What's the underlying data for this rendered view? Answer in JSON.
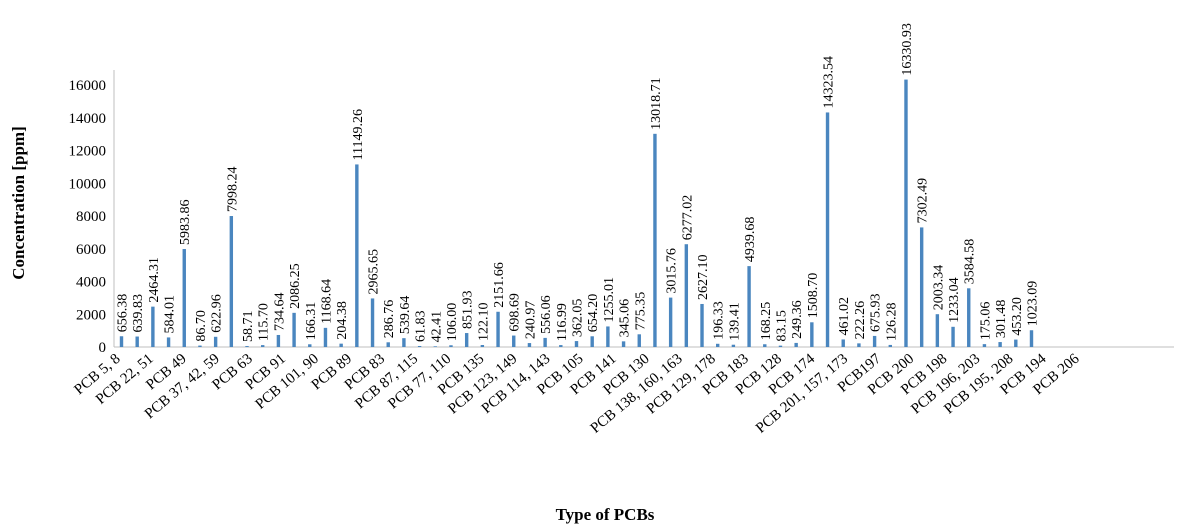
{
  "chart_data": {
    "type": "bar",
    "title": "",
    "xlabel": "Type of PCBs",
    "ylabel": "Concentration [ppm]",
    "ylim": [
      0,
      16000
    ],
    "yticks": [
      "0",
      "2000",
      "4000",
      "6000",
      "8000",
      "10000",
      "12000",
      "14000",
      "16000"
    ],
    "grid": false,
    "legend": "none",
    "bar_color": "#4a86bf",
    "category_labels": [
      "PCB 5, 8",
      "PCB 22, 51",
      "PCB 49",
      "PCB 37, 42, 59",
      "PCB 63",
      "PCB 91",
      "PCB 101, 90",
      "PCB 89",
      "PCB 83",
      "PCB 87, 115",
      "PCB 77, 110",
      "PCB 135",
      "PCB 123, 149",
      "PCB 114, 143",
      "PCB 105",
      "PCB 141",
      "PCB 130",
      "PCB 138, 160, 163",
      "PCB 129, 178",
      "PCB 183",
      "PCB 128",
      "PCB 174",
      "PCB 201, 157, 173",
      "PCB197",
      "PCB 200",
      "PCB 198",
      "PCB 196, 203",
      "PCB 195, 208",
      "PCB 194",
      "PCB 206"
    ],
    "values": [
      656.38,
      639.83,
      2464.31,
      584.01,
      5983.86,
      86.7,
      622.96,
      7998.24,
      58.71,
      115.7,
      734.64,
      2086.25,
      166.31,
      1168.64,
      204.38,
      11149.26,
      2965.65,
      286.76,
      539.64,
      61.83,
      42.41,
      106.0,
      851.93,
      122.1,
      2151.66,
      698.69,
      240.97,
      556.06,
      116.99,
      362.05,
      654.2,
      1255.01,
      345.06,
      775.35,
      13018.71,
      3015.76,
      6277.02,
      2627.1,
      196.33,
      139.41,
      4939.68,
      168.25,
      83.15,
      249.36,
      1508.7,
      14323.54,
      461.02,
      222.26,
      675.93,
      126.28,
      16330.93,
      7302.49,
      2003.34,
      1233.04,
      3584.58,
      175.06,
      301.48,
      453.2,
      1023.09
    ],
    "value_labels": [
      "656.38",
      "639.83",
      "2464.31",
      "584.01",
      "5983.86",
      "86.70",
      "622.96",
      "7998.24",
      "58.71",
      "115.70",
      "734.64",
      "2086.25",
      "166.31",
      "1168.64",
      "204.38",
      "11149.26",
      "2965.65",
      "286.76",
      "539.64",
      "61.83",
      "42.41",
      "106.00",
      "851.93",
      "122.10",
      "2151.66",
      "698.69",
      "240.97",
      "556.06",
      "116.99",
      "362.05",
      "654.20",
      "1255.01",
      "345.06",
      "775.35",
      "13018.71",
      "3015.76",
      "6277.02",
      "2627.10",
      "196.33",
      "139.41",
      "4939.68",
      "168.25",
      "83.15",
      "249.36",
      "1508.70",
      "14323.54",
      "461.02",
      "222.26",
      "675.93",
      "126.28",
      "16330.93",
      "7302.49",
      "2003.34",
      "1233.04",
      "3584.58",
      "175.06",
      "301.48",
      "453.20",
      "1023.09"
    ]
  }
}
